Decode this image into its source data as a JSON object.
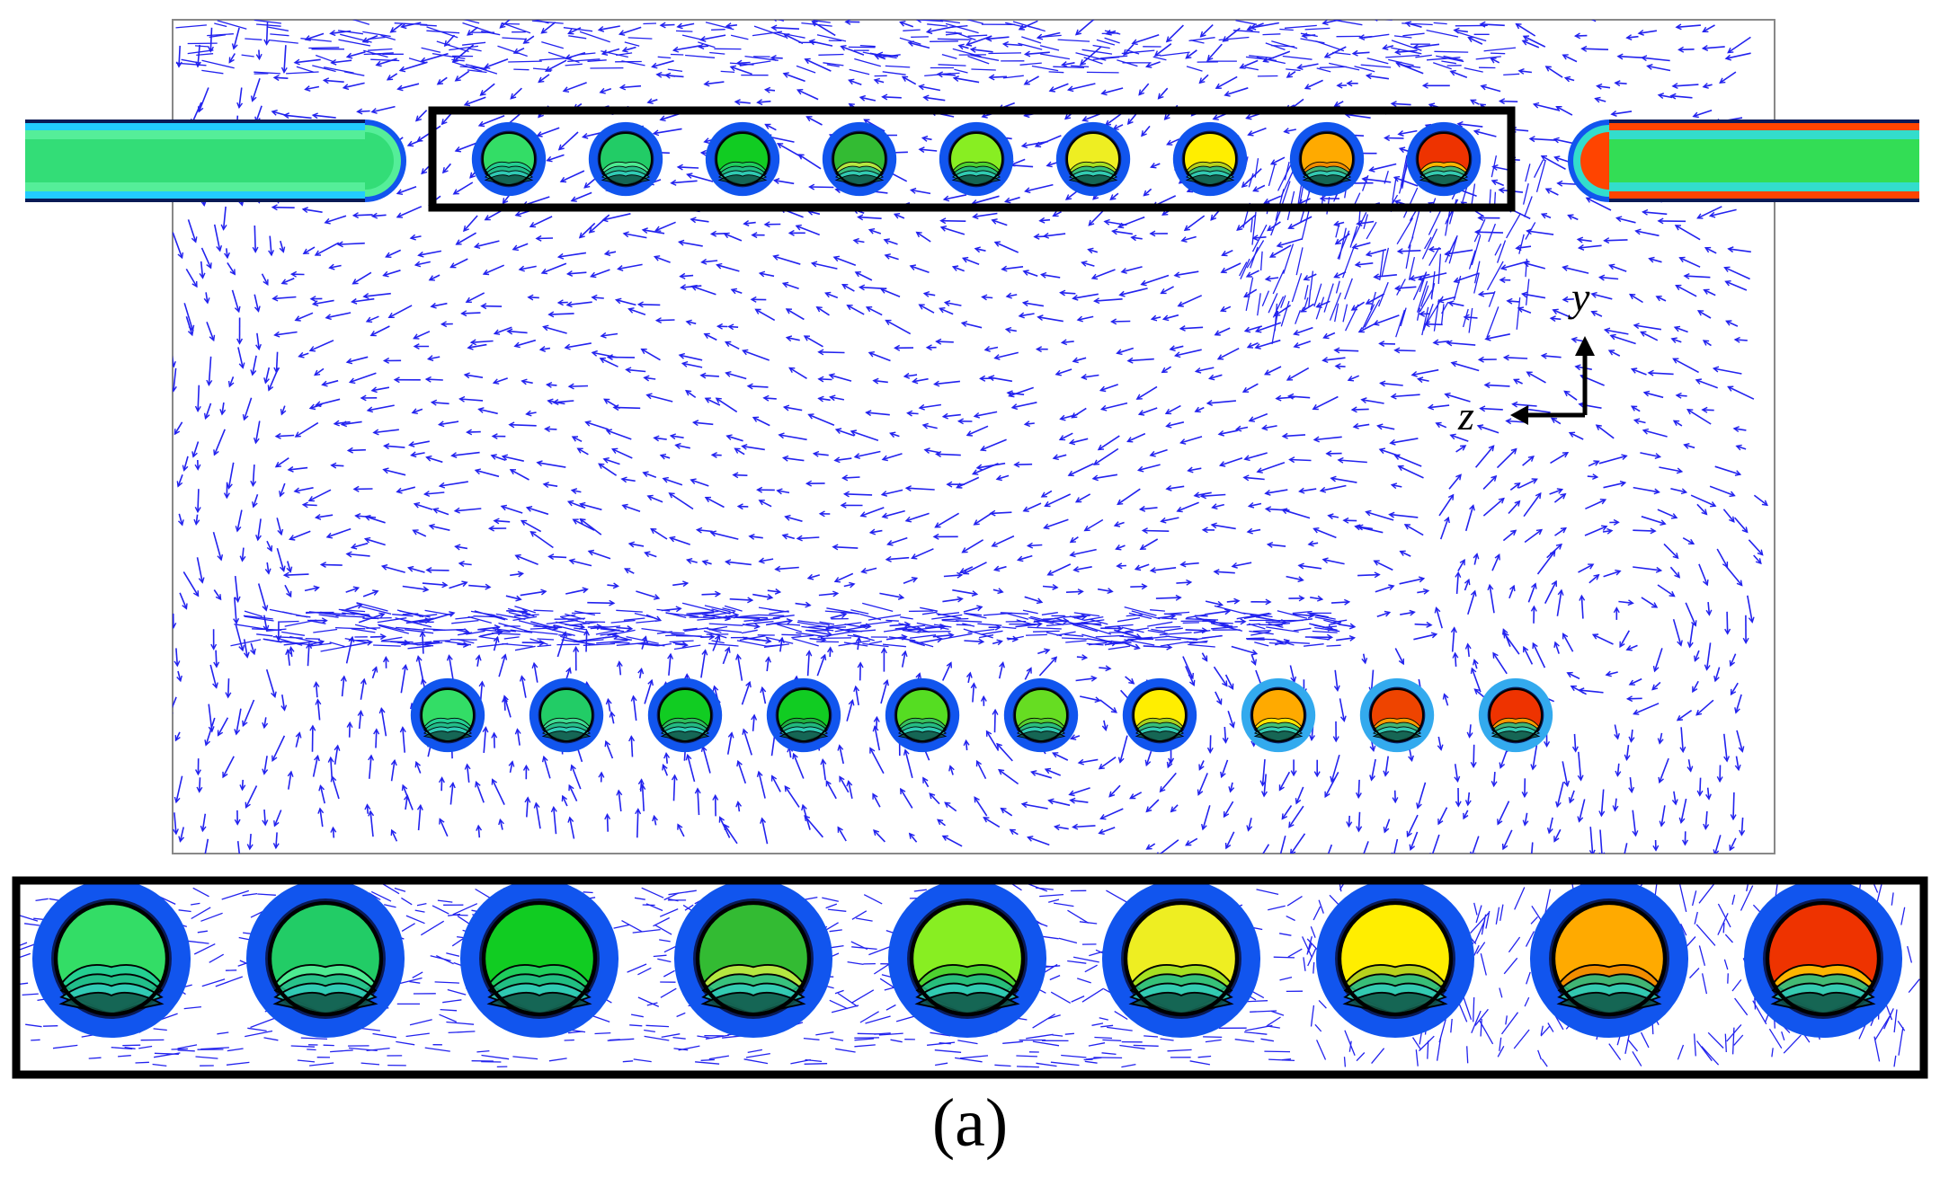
{
  "figure": {
    "panel_label": "(a)"
  },
  "axes_indicator": {
    "vertical_label": "y",
    "horizontal_label": "z"
  },
  "temperature_colors": {
    "cool_green": "#22dd66",
    "mid_green": "#11cc22",
    "lime": "#99ee22",
    "yellow": "#ffee00",
    "orange": "#ffaa00",
    "red": "#ee3300",
    "cyan": "#33ddcc",
    "outer_ring": "#1155ee",
    "light_ring": "#33aaee",
    "vector": "#2222ee"
  },
  "left_inlet_colors": [
    "#22ccff",
    "#55ee99",
    "#33dd77"
  ],
  "right_outlet_colors": [
    "#ff4400",
    "#33ddcc",
    "#33dd55"
  ],
  "upper_row_tubes": [
    {
      "fill": "#33dd66",
      "cap": "#22cc99",
      "ring": "#1155ee"
    },
    {
      "fill": "#22cc66",
      "cap": "#55ee99",
      "ring": "#1155ee"
    },
    {
      "fill": "#11cc22",
      "cap": "#22cc66",
      "ring": "#1155ee"
    },
    {
      "fill": "#33bb33",
      "cap": "#ccee44",
      "ring": "#1155ee"
    },
    {
      "fill": "#88ee22",
      "cap": "#44cc33",
      "ring": "#1155ee"
    },
    {
      "fill": "#eeee22",
      "cap": "#99dd22",
      "ring": "#1155ee"
    },
    {
      "fill": "#ffee00",
      "cap": "#aacc22",
      "ring": "#1155ee"
    },
    {
      "fill": "#ffaa00",
      "cap": "#ee8800",
      "ring": "#1155ee"
    },
    {
      "fill": "#ee3300",
      "cap": "#ffcc00",
      "ring": "#1155ee"
    }
  ],
  "lower_row_tubes": [
    {
      "fill": "#33dd66",
      "cap": "#22cc99",
      "ring": "#1155ee"
    },
    {
      "fill": "#22cc66",
      "cap": "#44dd99",
      "ring": "#1155ee"
    },
    {
      "fill": "#11cc22",
      "cap": "#33bb66",
      "ring": "#1155ee"
    },
    {
      "fill": "#11cc22",
      "cap": "#22aa44",
      "ring": "#1155ee"
    },
    {
      "fill": "#55dd22",
      "cap": "#33bb66",
      "ring": "#1155ee"
    },
    {
      "fill": "#66dd22",
      "cap": "#55cc33",
      "ring": "#1155ee"
    },
    {
      "fill": "#ffee00",
      "cap": "#99cc22",
      "ring": "#1155ee"
    },
    {
      "fill": "#ffaa00",
      "cap": "#ffee00",
      "ring": "#33aaee"
    },
    {
      "fill": "#ee4400",
      "cap": "#ffaa00",
      "ring": "#33aaee"
    },
    {
      "fill": "#ee3300",
      "cap": "#ffaa00",
      "ring": "#33aaee"
    }
  ]
}
